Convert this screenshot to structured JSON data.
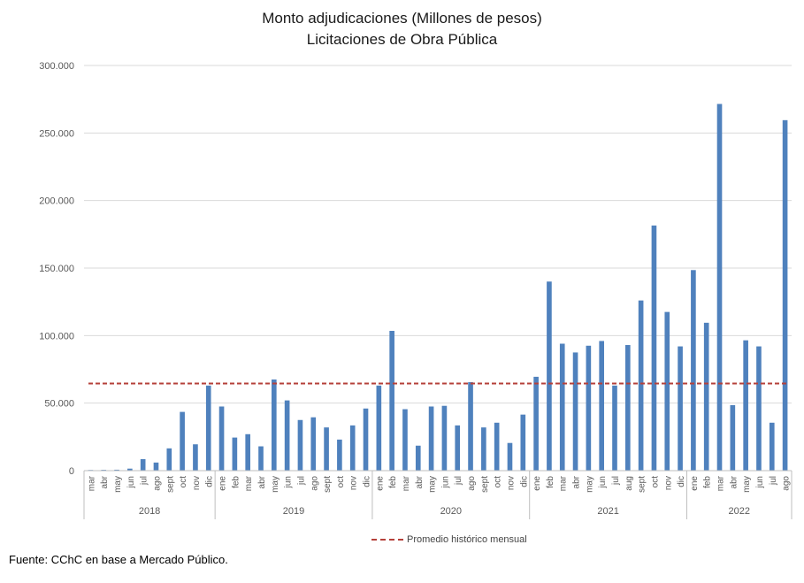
{
  "chart_data": {
    "type": "bar",
    "title": "Monto adjudicaciones (Millones de pesos)",
    "subtitle": "Licitaciones de Obra Pública",
    "ylim": [
      0,
      300000
    ],
    "yticks": [
      0,
      50000,
      100000,
      150000,
      200000,
      250000,
      300000
    ],
    "ytick_labels": [
      "0",
      "50.000",
      "100.000",
      "150.000",
      "200.000",
      "250.000",
      "300.000"
    ],
    "categories": [
      "mar",
      "abr",
      "may",
      "jun",
      "jul",
      "ago",
      "sept",
      "oct",
      "nov",
      "dic",
      "ene",
      "feb",
      "mar",
      "abr",
      "may",
      "jun",
      "jul",
      "ago",
      "sept",
      "oct",
      "nov",
      "dic",
      "ene",
      "feb",
      "mar",
      "abr",
      "may",
      "jun",
      "jul",
      "ago",
      "sept",
      "oct",
      "nov",
      "dic",
      "ene",
      "feb",
      "mar",
      "abr",
      "may",
      "jun",
      "jul",
      "aug",
      "sept",
      "oct",
      "nov",
      "dic",
      "ene",
      "feb",
      "mar",
      "abr",
      "may",
      "jun",
      "jul",
      "ago"
    ],
    "series": [
      {
        "name": "Monto adjudicaciones",
        "color": "#4f81bd",
        "values": [
          500,
          600,
          700,
          1500,
          8500,
          6000,
          16500,
          43500,
          19500,
          63000,
          47500,
          24500,
          27000,
          18000,
          67500,
          52000,
          37500,
          39500,
          32000,
          23000,
          33500,
          46000,
          63000,
          103500,
          45500,
          18500,
          47500,
          48000,
          33500,
          65500,
          32000,
          35500,
          20500,
          41500,
          69500,
          140000,
          94000,
          87500,
          92500,
          96000,
          63000,
          93000,
          126000,
          181500,
          117500,
          92000,
          148500,
          109500,
          271500,
          48500,
          96500,
          92000,
          35500,
          259500
        ]
      }
    ],
    "reference_line": {
      "name": "Promedio histórico mensual",
      "value": 64500,
      "color": "#b5403a",
      "style": "dashed"
    },
    "year_groups": [
      {
        "label": "2018",
        "start": 0,
        "end": 9
      },
      {
        "label": "2019",
        "start": 10,
        "end": 21
      },
      {
        "label": "2020",
        "start": 22,
        "end": 33
      },
      {
        "label": "2021",
        "start": 34,
        "end": 45
      },
      {
        "label": "2022",
        "start": 46,
        "end": 53
      }
    ],
    "grid": true,
    "legend_position": "bottom-center"
  },
  "source_note": "Fuente: CChC en base a Mercado Público."
}
